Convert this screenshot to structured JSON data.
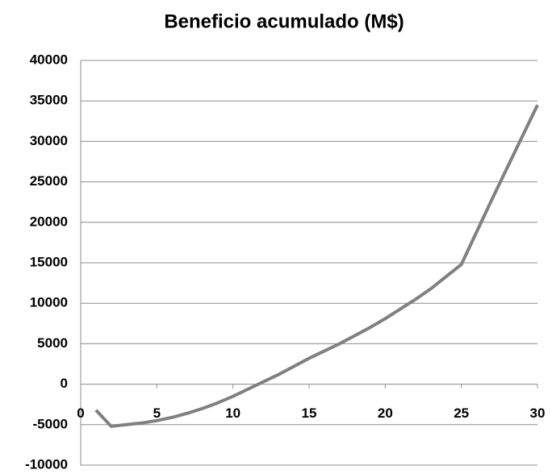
{
  "chart_data": {
    "type": "line",
    "title": "Beneficio acumulado (M$)",
    "x": [
      1,
      2,
      3,
      4,
      5,
      6,
      7,
      8,
      9,
      10,
      11,
      12,
      13,
      14,
      15,
      16,
      17,
      18,
      19,
      20,
      21,
      22,
      23,
      24,
      25,
      26,
      27,
      28,
      29,
      30
    ],
    "values": [
      -3200,
      -5200,
      -5000,
      -4800,
      -4500,
      -4100,
      -3600,
      -3000,
      -2300,
      -1500,
      -600,
      300,
      1200,
      2200,
      3200,
      4100,
      5000,
      6000,
      7000,
      8100,
      9300,
      10500,
      11800,
      13300,
      14800,
      18800,
      22800,
      26700,
      30600,
      34500
    ],
    "color": "#808080",
    "xlim": [
      0,
      30
    ],
    "xticks": [
      0,
      5,
      10,
      15,
      20,
      25,
      30
    ],
    "ylim": [
      -10000,
      40000
    ],
    "yticks": [
      -10000,
      -5000,
      0,
      5000,
      10000,
      15000,
      20000,
      25000,
      30000,
      35000,
      40000
    ],
    "grid": true
  }
}
